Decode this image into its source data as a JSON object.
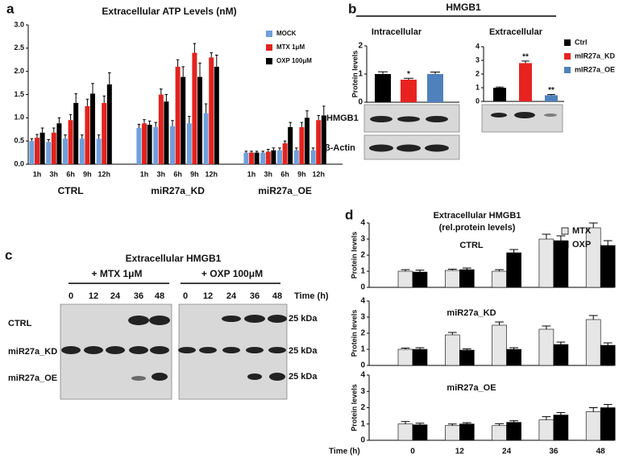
{
  "panel_labels": [
    "a",
    "b",
    "c",
    "d"
  ],
  "header_b": "HMGB1",
  "blot_b": {
    "rows": [
      "HMGB1",
      "β-Actin"
    ]
  },
  "blot_c": {
    "title": "Extracellular HMGB1",
    "treatments": [
      "+ MTX 1μM",
      "+ OXP 100μM"
    ],
    "times": [
      0,
      12,
      24,
      36,
      48
    ],
    "time_label": "Time (h)",
    "rows": [
      "CTRL",
      "miR27a_KD",
      "miR27a_OE"
    ],
    "marker": "25 kDa"
  },
  "panel_d_title": [
    "Extracellular HMGB1",
    "(rel.protein levels)"
  ],
  "chart_data": [
    {
      "type": "bar",
      "title": "Extracellular ATP Levels (nM)",
      "categories": [
        "1h",
        "3h",
        "6h",
        "9h",
        "12h",
        "1h",
        "3h",
        "6h",
        "9h",
        "12h",
        "1h",
        "3h",
        "6h",
        "9h",
        "12h"
      ],
      "groups": [
        "CTRL",
        "miR27a_KD",
        "miR27a_OE"
      ],
      "series": [
        {
          "name": "MOCK",
          "color": "#6f9fdc",
          "values": [
            0.5,
            0.48,
            0.55,
            0.55,
            0.55,
            0.78,
            0.8,
            0.82,
            0.88,
            1.1,
            0.25,
            0.25,
            0.3,
            0.3,
            0.3
          ],
          "errors": [
            0.05,
            0.05,
            0.08,
            0.08,
            0.08,
            0.08,
            0.1,
            0.12,
            0.15,
            0.2,
            0.03,
            0.03,
            0.05,
            0.05,
            0.05
          ]
        },
        {
          "name": "MTX 1μM",
          "color": "#e3231e",
          "values": [
            0.57,
            0.68,
            0.95,
            1.25,
            1.32,
            0.88,
            1.5,
            2.1,
            2.4,
            2.3,
            0.25,
            0.27,
            0.45,
            0.8,
            0.95
          ],
          "errors": [
            0.07,
            0.1,
            0.12,
            0.15,
            0.15,
            0.08,
            0.12,
            0.15,
            0.2,
            0.1,
            0.03,
            0.05,
            0.05,
            0.1,
            0.1
          ]
        },
        {
          "name": "OXP 100μM",
          "color": "#000000",
          "values": [
            0.68,
            0.88,
            1.32,
            1.52,
            1.72,
            0.85,
            1.35,
            1.88,
            1.88,
            2.1,
            0.25,
            0.3,
            0.8,
            1.0,
            1.05
          ],
          "errors": [
            0.1,
            0.12,
            0.2,
            0.22,
            0.25,
            0.08,
            0.15,
            0.22,
            0.3,
            0.25,
            0.03,
            0.05,
            0.1,
            0.15,
            0.2
          ]
        }
      ],
      "ylim": [
        0,
        3
      ],
      "yticks": [
        {
          "value": 0,
          "label": "0.0"
        },
        0.5,
        {
          "value": 1,
          "label": "1.0"
        },
        1.5,
        {
          "value": 2,
          "label": "2.0"
        },
        2.5,
        {
          "value": 3,
          "label": "3.0"
        }
      ],
      "legend": "upper right"
    },
    {
      "type": "bar",
      "title": "Intracellular",
      "y_label": "Protein levels",
      "series": [
        {
          "color": "#000000",
          "values": [
            1.0
          ],
          "errors": [
            0.08
          ]
        },
        {
          "color": "#e8231f",
          "values": [
            0.8
          ],
          "errors": [
            0.05
          ],
          "annotation": "*"
        },
        {
          "color": "#4f81bd",
          "values": [
            1.0
          ],
          "errors": [
            0.07
          ]
        }
      ],
      "ylim": [
        0,
        2
      ],
      "yticks": [
        0,
        1,
        2
      ]
    },
    {
      "type": "bar",
      "title": "Extracellular",
      "series": [
        {
          "name": "Ctrl",
          "color": "#000000",
          "values": [
            1.0
          ],
          "errors": [
            0.05
          ]
        },
        {
          "name": "mIR27a_KD",
          "color": "#e8231f",
          "values": [
            2.8
          ],
          "errors": [
            0.15
          ],
          "annotation": "**"
        },
        {
          "name": "mIR27a_OE",
          "color": "#4f81bd",
          "values": [
            0.45
          ],
          "errors": [
            0.05
          ],
          "annotation": "**"
        }
      ],
      "ylim": [
        0,
        4
      ],
      "yticks": [
        0,
        1,
        2,
        3,
        4
      ],
      "legend": "right"
    },
    {
      "type": "bar",
      "subtitle": "CTRL",
      "y_label": "Protein levels",
      "series": [
        {
          "name": "MTX",
          "color": "#e6e6e6",
          "values": [
            1.0,
            1.05,
            1.0,
            3.0,
            3.7
          ],
          "errors": [
            0.1,
            0.08,
            0.1,
            0.3,
            0.3
          ]
        },
        {
          "name": "OXP",
          "color": "#000000",
          "values": [
            0.95,
            1.1,
            2.15,
            2.9,
            2.6
          ],
          "errors": [
            0.12,
            0.1,
            0.2,
            0.3,
            0.3
          ]
        }
      ],
      "ylim": [
        0,
        4
      ],
      "yticks": [
        0,
        1,
        2,
        3,
        4
      ],
      "legend": "upper right"
    },
    {
      "type": "bar",
      "subtitle": "miR27a_KD",
      "y_label": "Protein levels",
      "series": [
        {
          "color": "#e6e6e6",
          "values": [
            1.0,
            1.9,
            2.5,
            2.25,
            2.85
          ],
          "errors": [
            0.08,
            0.15,
            0.2,
            0.2,
            0.25
          ]
        },
        {
          "color": "#000000",
          "values": [
            1.0,
            0.95,
            1.0,
            1.3,
            1.25
          ],
          "errors": [
            0.1,
            0.08,
            0.1,
            0.15,
            0.15
          ]
        }
      ],
      "ylim": [
        0,
        4
      ],
      "yticks": [
        0,
        1,
        2,
        3,
        4
      ]
    },
    {
      "type": "bar",
      "subtitle": "miR27a_OE",
      "y_label": "Protein levels",
      "x_label": "Time (h)",
      "categories": [
        0,
        12,
        24,
        36,
        48
      ],
      "series": [
        {
          "color": "#e6e6e6",
          "values": [
            1.0,
            0.9,
            0.9,
            1.25,
            1.75
          ],
          "errors": [
            0.15,
            0.1,
            0.12,
            0.2,
            0.25
          ]
        },
        {
          "color": "#000000",
          "values": [
            0.95,
            1.0,
            1.1,
            1.55,
            2.0
          ],
          "errors": [
            0.1,
            0.08,
            0.1,
            0.15,
            0.2
          ]
        }
      ],
      "ylim": [
        0,
        4
      ],
      "yticks": [
        0,
        1,
        2,
        3,
        4
      ]
    }
  ]
}
